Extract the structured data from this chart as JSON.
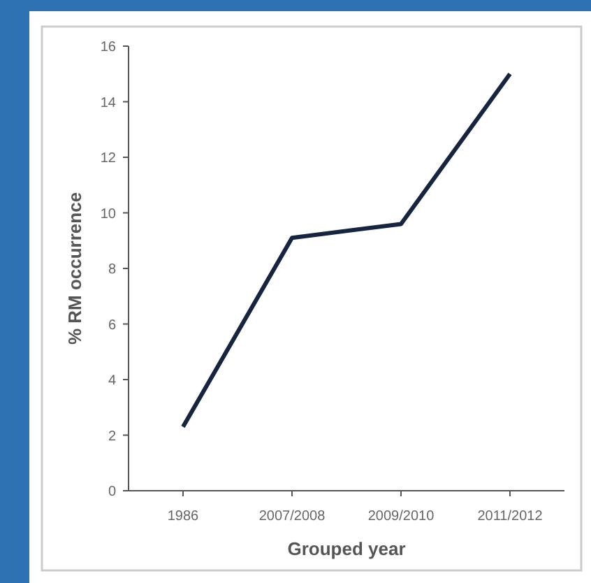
{
  "chart_data": {
    "type": "line",
    "xlabel": "Grouped year",
    "ylabel": "% RM occurrence",
    "categories": [
      "1986",
      "2007/2008",
      "2009/2010",
      "2011/2012"
    ],
    "series": [
      {
        "color": "#15243f",
        "values": [
          2.3,
          9.1,
          9.6,
          15
        ]
      }
    ],
    "ylim": [
      0,
      16
    ],
    "yticks": [
      0,
      2,
      4,
      6,
      8,
      10,
      12,
      14,
      16
    ],
    "grid": false,
    "marker": "none",
    "line_style": "solid"
  }
}
